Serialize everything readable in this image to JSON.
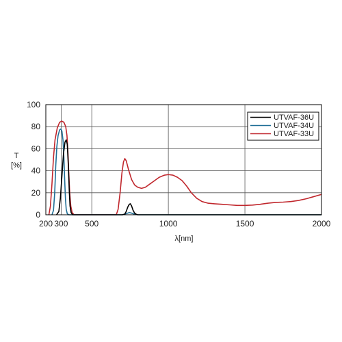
{
  "chart_data": {
    "type": "line",
    "title": "",
    "ylabel": "T",
    "ylabel_unit": "[%]",
    "xlabel": "λ[nm]",
    "xlim": [
      200,
      2000
    ],
    "ylim": [
      0,
      100
    ],
    "x_ticks": [
      200,
      300,
      500,
      1000,
      1500,
      2000
    ],
    "y_ticks": [
      0,
      20,
      40,
      60,
      80,
      100
    ],
    "grid": true,
    "legend_position": "top-right",
    "series": [
      {
        "name": "UTVAF-36U",
        "color": "#000000",
        "points": [
          [
            270,
            0
          ],
          [
            285,
            3
          ],
          [
            295,
            15
          ],
          [
            305,
            35
          ],
          [
            315,
            55
          ],
          [
            325,
            66
          ],
          [
            333,
            68
          ],
          [
            340,
            64
          ],
          [
            347,
            45
          ],
          [
            353,
            22
          ],
          [
            358,
            8
          ],
          [
            365,
            2
          ],
          [
            375,
            0
          ],
          [
            700,
            0
          ],
          [
            715,
            0.5
          ],
          [
            725,
            3
          ],
          [
            735,
            7
          ],
          [
            745,
            9.5
          ],
          [
            752,
            10
          ],
          [
            760,
            8
          ],
          [
            770,
            4
          ],
          [
            780,
            1.5
          ],
          [
            790,
            0.5
          ],
          [
            800,
            0
          ],
          [
            2000,
            0
          ]
        ]
      },
      {
        "name": "UTVAF-34U",
        "color": "#1f6e96",
        "points": [
          [
            240,
            0
          ],
          [
            250,
            4
          ],
          [
            258,
            20
          ],
          [
            265,
            45
          ],
          [
            272,
            62
          ],
          [
            280,
            72
          ],
          [
            290,
            77
          ],
          [
            298,
            78
          ],
          [
            305,
            76
          ],
          [
            312,
            68
          ],
          [
            318,
            52
          ],
          [
            323,
            32
          ],
          [
            328,
            15
          ],
          [
            333,
            5
          ],
          [
            340,
            1
          ],
          [
            350,
            0
          ],
          [
            700,
            0
          ],
          [
            725,
            1
          ],
          [
            745,
            2
          ],
          [
            760,
            1.5
          ],
          [
            780,
            0.5
          ],
          [
            800,
            0
          ],
          [
            2000,
            0
          ]
        ]
      },
      {
        "name": "UTVAF-33U",
        "color": "#c0262c",
        "points": [
          [
            220,
            0
          ],
          [
            230,
            8
          ],
          [
            240,
            28
          ],
          [
            250,
            52
          ],
          [
            260,
            68
          ],
          [
            275,
            79
          ],
          [
            290,
            84
          ],
          [
            305,
            85
          ],
          [
            318,
            84
          ],
          [
            330,
            80
          ],
          [
            338,
            72
          ],
          [
            345,
            55
          ],
          [
            350,
            38
          ],
          [
            356,
            20
          ],
          [
            363,
            8
          ],
          [
            372,
            2
          ],
          [
            385,
            0
          ],
          [
            660,
            0
          ],
          [
            672,
            5
          ],
          [
            685,
            20
          ],
          [
            697,
            38
          ],
          [
            707,
            48
          ],
          [
            716,
            51
          ],
          [
            725,
            49
          ],
          [
            740,
            41
          ],
          [
            760,
            32
          ],
          [
            780,
            27
          ],
          [
            800,
            25
          ],
          [
            825,
            24
          ],
          [
            850,
            25
          ],
          [
            880,
            28
          ],
          [
            910,
            31
          ],
          [
            940,
            34
          ],
          [
            975,
            36
          ],
          [
            1000,
            36.5
          ],
          [
            1030,
            36
          ],
          [
            1060,
            34
          ],
          [
            1090,
            31
          ],
          [
            1120,
            26
          ],
          [
            1150,
            20
          ],
          [
            1185,
            15
          ],
          [
            1220,
            12
          ],
          [
            1260,
            10.5
          ],
          [
            1300,
            10
          ],
          [
            1350,
            9.5
          ],
          [
            1400,
            9
          ],
          [
            1450,
            8.5
          ],
          [
            1500,
            8.5
          ],
          [
            1550,
            8.8
          ],
          [
            1600,
            9.5
          ],
          [
            1650,
            10.5
          ],
          [
            1700,
            11.2
          ],
          [
            1750,
            11.5
          ],
          [
            1800,
            12
          ],
          [
            1850,
            13
          ],
          [
            1900,
            14.5
          ],
          [
            1950,
            16.5
          ],
          [
            2000,
            18.5
          ]
        ]
      }
    ]
  }
}
